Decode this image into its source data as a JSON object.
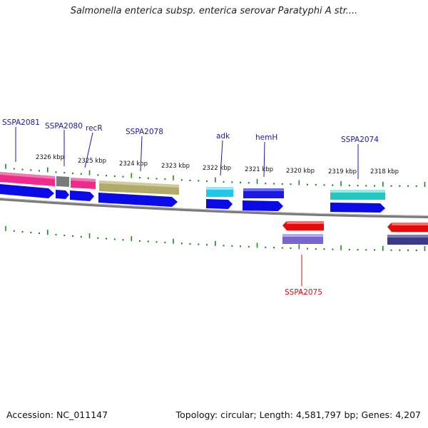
{
  "title": "Salmonella enterica subsp. enterica serovar Paratyphi A str....",
  "footer": {
    "accession": "Accession: NC_011147",
    "summary": "Topology: circular; Length: 4,581,797 bp; Genes: 4,207"
  },
  "scale_labels": [
    "2326 kbp",
    "2325 kbp",
    "2324 kbp",
    "2323 kbp",
    "2322 kbp",
    "2321 kbp",
    "2320 kbp",
    "2319 kbp",
    "2318 kbp"
  ],
  "gene_labels": [
    {
      "text": "SSPA2081",
      "color": "#1a1aa0"
    },
    {
      "text": "SSPA2080",
      "color": "#1a1aa0"
    },
    {
      "text": "recR",
      "color": "#1a1aa0"
    },
    {
      "text": "SSPA2078",
      "color": "#1a1aa0"
    },
    {
      "text": "adk",
      "color": "#1a1aa0"
    },
    {
      "text": "hemH",
      "color": "#1a1aa0"
    },
    {
      "text": "SSPA2074",
      "color": "#1a1aa0"
    },
    {
      "text": "SSPA2075",
      "color": "#cc1111"
    }
  ],
  "colors": {
    "forward_strand": "#0a0ae6",
    "reverse_strand": "#e60a0a",
    "tick": "#1a8a1a",
    "backbone": "#808080",
    "pink": "#ee2a8a",
    "gray": "#7a7a7a",
    "olive": "#b0ab6a",
    "cyan": "#1fc8ea",
    "blue": "#1a1ae0",
    "teal": "#22c8c0",
    "lavender": "#7766cc",
    "indigo": "#3a3a88"
  }
}
